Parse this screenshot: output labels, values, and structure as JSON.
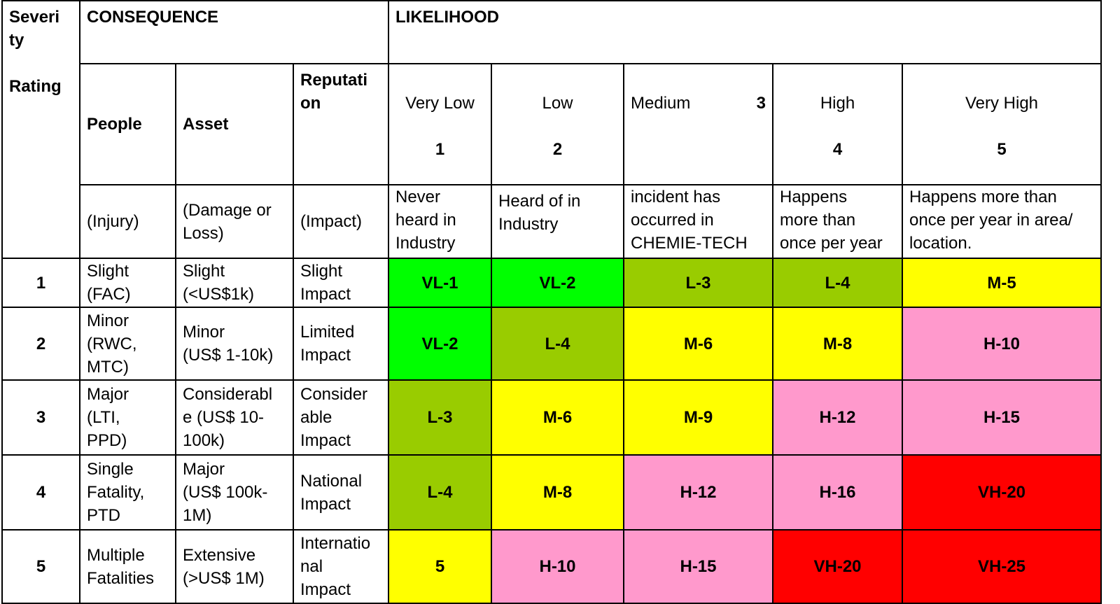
{
  "header": {
    "severity_rating": "Severi\nty\n\nRating",
    "consequence": "CONSEQUENCE",
    "likelihood": "LIKELIHOOD",
    "people": "People",
    "asset": "Asset",
    "reputation": "Reputati\non",
    "people_sub": "(Injury)",
    "asset_sub": "(Damage or\nLoss)",
    "reputation_sub": "(Impact)"
  },
  "likelihood_levels": [
    {
      "name": "Very Low",
      "num": "1",
      "desc": "Never\nheard in\nIndustry"
    },
    {
      "name": "Low",
      "num": "2",
      "desc": "Heard of in\nIndustry"
    },
    {
      "name": "Medium",
      "num": "3",
      "desc": "incident has\noccurred in\nCHEMIE-TECH"
    },
    {
      "name": "High",
      "num": "4",
      "desc": "Happens\nmore than\nonce per year"
    },
    {
      "name": "Very High",
      "num": "5",
      "desc": "Happens more than\nonce per year in area/\nlocation."
    }
  ],
  "rows": [
    {
      "rating": "1",
      "people": "Slight\n(FAC)",
      "asset": "Slight\n(<US$1k)",
      "reputation": "Slight\nImpact",
      "cells": [
        "VL-1",
        "VL-2",
        "L-3",
        "L-4",
        "M-5"
      ]
    },
    {
      "rating": "2",
      "people": "Minor\n(RWC,\nMTC)",
      "asset": "Minor\n(US$ 1-10k)",
      "reputation": "Limited\nImpact",
      "cells": [
        "VL-2",
        "L-4",
        "M-6",
        "M-8",
        "H-10"
      ]
    },
    {
      "rating": "3",
      "people": "Major\n(LTI,\nPPD)",
      "asset": "Considerabl\ne (US$ 10-\n100k)",
      "reputation": "Consider\nable\nImpact",
      "cells": [
        "L-3",
        "M-6",
        "M-9",
        "H-12",
        "H-15"
      ]
    },
    {
      "rating": "4",
      "people": "Single\nFatality,\nPTD",
      "asset": "Major\n(US$ 100k-\n1M)",
      "reputation": "National\nImpact",
      "cells": [
        "L-4",
        "M-8",
        "H-12",
        "H-16",
        "VH-20"
      ]
    },
    {
      "rating": "5",
      "people": "Multiple\nFatalities",
      "asset": "Extensive\n(>US$ 1M)",
      "reputation": "Internatio\nnal\nImpact",
      "cells": [
        "5",
        "H-10",
        "H-15",
        "VH-20",
        "VH-25"
      ]
    }
  ],
  "cell_colors": [
    [
      "#00ff00",
      "#00ff00",
      "#99cc00",
      "#99cc00",
      "#ffff00"
    ],
    [
      "#00ff00",
      "#99cc00",
      "#ffff00",
      "#ffff00",
      "#ff99cc"
    ],
    [
      "#99cc00",
      "#ffff00",
      "#ffff00",
      "#ff99cc",
      "#ff99cc"
    ],
    [
      "#99cc00",
      "#ffff00",
      "#ff99cc",
      "#ff99cc",
      "#ff0000"
    ],
    [
      "#ffff00",
      "#ff99cc",
      "#ff99cc",
      "#ff0000",
      "#ff0000"
    ]
  ]
}
